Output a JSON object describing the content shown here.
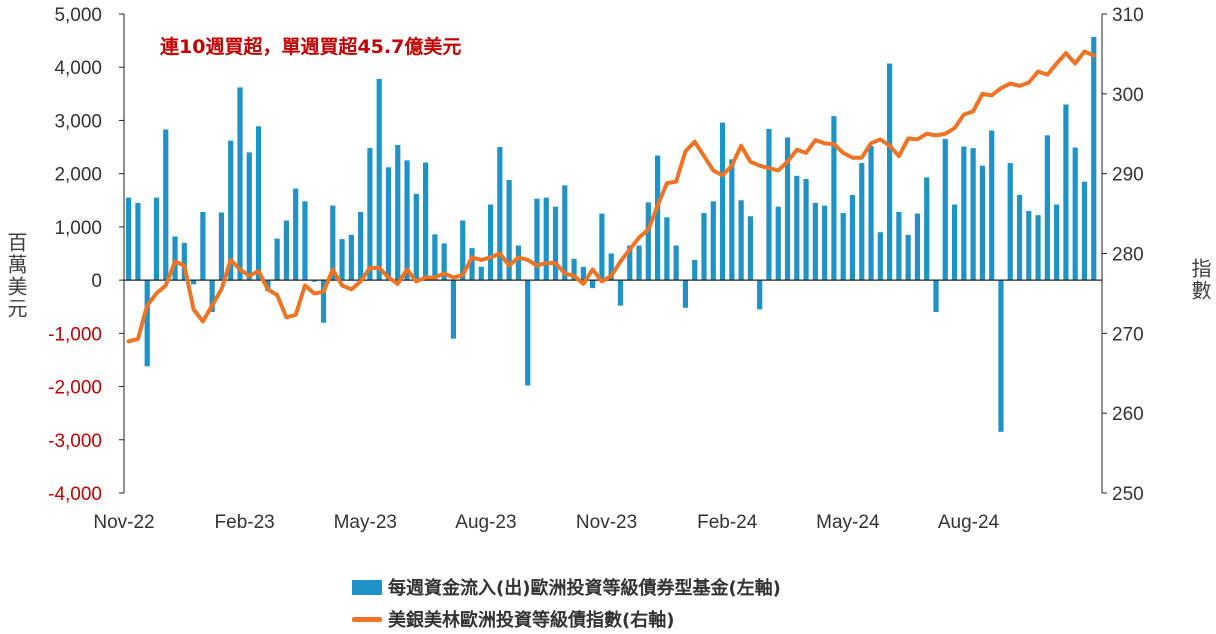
{
  "colors": {
    "bar": "#1f93c6",
    "line": "#ec7424",
    "negative_tick": "#c00000",
    "tick": "#333333",
    "annotation": "#c00000",
    "axis": "#222222"
  },
  "labels": {
    "y_left": "百萬美元",
    "y_right": "指數",
    "annotation": "連10週買超，單週買超45.7億美元"
  },
  "legend": {
    "bar": "每週資金流入(出)歐洲投資等級債券型基金(左軸)",
    "line": "美銀美林歐洲投資等級債指數(右軸)"
  },
  "chart_data": {
    "type": "bar+line",
    "x_tick_labels": [
      "Nov-22",
      "Feb-23",
      "May-23",
      "Aug-23",
      "Nov-23",
      "Feb-24",
      "May-24",
      "Aug-24"
    ],
    "y_left_ticks": [
      "5,000",
      "4,000",
      "3,000",
      "2,000",
      "1,000",
      "0",
      "-1,000",
      "-2,000",
      "-3,000",
      "-4,000"
    ],
    "y_right_ticks": [
      "310",
      "300",
      "290",
      "280",
      "270",
      "260",
      "250"
    ],
    "ylim_left": [
      -4000,
      5000
    ],
    "ylim_right": [
      250,
      310
    ],
    "series": [
      {
        "name": "每週資金流入(出)歐洲投資等級債券型基金(左軸)",
        "axis": "left",
        "kind": "bar",
        "values": [
          1550,
          1450,
          -1620,
          1550,
          2830,
          820,
          700,
          -80,
          1280,
          -600,
          1270,
          2620,
          3620,
          2400,
          2890,
          -200,
          780,
          1120,
          1720,
          1480,
          -30,
          -800,
          1400,
          770,
          850,
          1280,
          2480,
          3780,
          2120,
          2540,
          2250,
          1620,
          2210,
          860,
          690,
          -1100,
          1120,
          600,
          250,
          1420,
          2500,
          1880,
          650,
          -1980,
          1530,
          1550,
          1380,
          1780,
          400,
          250,
          -150,
          1250,
          500,
          -480,
          650,
          650,
          1460,
          2340,
          1180,
          650,
          -520,
          380,
          1260,
          1480,
          2960,
          2270,
          1500,
          1200,
          -550,
          2840,
          1380,
          2680,
          1960,
          1900,
          1450,
          1400,
          3080,
          1260,
          1600,
          2200,
          2520,
          900,
          4070,
          1280,
          850,
          1250,
          1930,
          -600,
          2650,
          1420,
          2510,
          2480,
          2150,
          2810,
          -2850,
          2200,
          1600,
          1300,
          1220,
          2720,
          1420,
          3300,
          2490,
          1850,
          4570
        ]
      },
      {
        "name": "美銀美林歐洲投資等級債指數(右軸)",
        "axis": "right",
        "kind": "line",
        "values": [
          269,
          269.3,
          273.5,
          275,
          276,
          279,
          278.5,
          273,
          271.5,
          273.5,
          275.5,
          279.2,
          278,
          277.2,
          277.8,
          275.5,
          274.8,
          272,
          272.3,
          276,
          275,
          275.2,
          278,
          276,
          275.5,
          276.5,
          278.2,
          278.2,
          277,
          276.2,
          278,
          276.5,
          277,
          277,
          277.5,
          277,
          277.3,
          279.5,
          279.2,
          279.5,
          280,
          278.5,
          279.5,
          279.2,
          278.5,
          278.8,
          278.8,
          277.5,
          277.2,
          276.2,
          278,
          276.5,
          277.2,
          279,
          280.5,
          282,
          283,
          286,
          288.8,
          289,
          292.8,
          294,
          292.2,
          290.4,
          289.8,
          291,
          293.5,
          291.5,
          291,
          290.7,
          290.4,
          291.5,
          293,
          292.6,
          294.2,
          293.8,
          293.7,
          292.6,
          292,
          292,
          293.8,
          294.3,
          293.5,
          292.2,
          294.4,
          294.3,
          295,
          294.8,
          295,
          295.7,
          297.4,
          297.8,
          300,
          299.8,
          300.7,
          301.3,
          301,
          301.4,
          302.8,
          302.4,
          303.8,
          305.1,
          303.8,
          305.3,
          304.8
        ]
      }
    ],
    "xlabel": "",
    "ylabel_left": "百萬美元",
    "ylabel_right": "指數",
    "grid": false,
    "legend_position": "bottom"
  }
}
